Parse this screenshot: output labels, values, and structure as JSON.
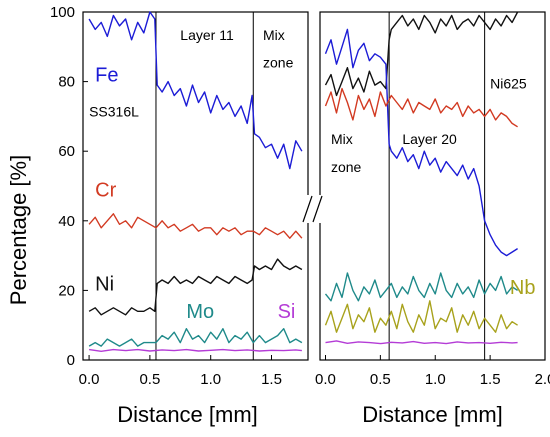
{
  "chart_data": {
    "type": "line",
    "ylabel": "Percentage [%]",
    "y_ticks": [
      "0",
      "20",
      "40",
      "60",
      "80",
      "100"
    ],
    "ylim": [
      0,
      100
    ],
    "axis_break": true,
    "panels": [
      {
        "xlabel": "Distance [mm]",
        "xlim": [
          -0.05,
          1.8
        ],
        "x_ticks": [
          "0.0",
          "0.5",
          "1.0",
          "1.5"
        ],
        "tick_values": [
          0,
          0.5,
          1.0,
          1.5
        ],
        "boundaries": [
          0.55,
          1.35
        ],
        "annotations": [
          {
            "text": "Layer 11",
            "x": 0.75,
            "y": 92
          },
          {
            "text": "Mix",
            "x": 1.43,
            "y": 92
          },
          {
            "text": "zone",
            "x": 1.43,
            "y": 84
          },
          {
            "text": "SS316L",
            "x": 0.0,
            "y": 70
          }
        ],
        "series": [
          {
            "name": "Fe",
            "color": "#1c1cd6",
            "label_pos": [
              0.05,
              80
            ],
            "x": [
              0.0,
              0.05,
              0.1,
              0.15,
              0.2,
              0.25,
              0.3,
              0.35,
              0.4,
              0.45,
              0.5,
              0.54,
              0.56,
              0.6,
              0.65,
              0.7,
              0.75,
              0.8,
              0.85,
              0.9,
              0.95,
              1.0,
              1.05,
              1.1,
              1.15,
              1.2,
              1.25,
              1.3,
              1.34,
              1.36,
              1.4,
              1.45,
              1.5,
              1.55,
              1.6,
              1.65,
              1.7,
              1.75
            ],
            "y": [
              98,
              95,
              97,
              93,
              99,
              96,
              98,
              92,
              97,
              94,
              100,
              98,
              79,
              77,
              80,
              76,
              78,
              73,
              79,
              74,
              77,
              71,
              76,
              72,
              74,
              70,
              73,
              68,
              76,
              65,
              64,
              61,
              62,
              58,
              62,
              55,
              63,
              60
            ]
          },
          {
            "name": "Cr",
            "color": "#d23a22",
            "label_pos": [
              0.05,
              47
            ],
            "x": [
              0.0,
              0.05,
              0.1,
              0.15,
              0.2,
              0.25,
              0.3,
              0.35,
              0.4,
              0.45,
              0.5,
              0.55,
              0.6,
              0.65,
              0.7,
              0.75,
              0.8,
              0.85,
              0.9,
              0.95,
              1.0,
              1.05,
              1.1,
              1.15,
              1.2,
              1.25,
              1.3,
              1.35,
              1.4,
              1.45,
              1.5,
              1.55,
              1.6,
              1.65,
              1.7,
              1.75
            ],
            "y": [
              39,
              41,
              38,
              40,
              42,
              39,
              40,
              38,
              41,
              40,
              39,
              38,
              40,
              38,
              39,
              37,
              38,
              39,
              37,
              38,
              38,
              36,
              38,
              37,
              38,
              36,
              37,
              37,
              36,
              38,
              37,
              36,
              37,
              35,
              37,
              35
            ]
          },
          {
            "name": "Ni",
            "color": "#111111",
            "label_pos": [
              0.05,
              20
            ],
            "x": [
              0.0,
              0.05,
              0.1,
              0.15,
              0.2,
              0.25,
              0.3,
              0.35,
              0.4,
              0.45,
              0.5,
              0.54,
              0.56,
              0.6,
              0.65,
              0.7,
              0.75,
              0.8,
              0.85,
              0.9,
              0.95,
              1.0,
              1.05,
              1.1,
              1.15,
              1.2,
              1.25,
              1.3,
              1.34,
              1.36,
              1.4,
              1.45,
              1.5,
              1.55,
              1.6,
              1.65,
              1.7,
              1.75
            ],
            "y": [
              14,
              15,
              13,
              14,
              15,
              14,
              13,
              15,
              14,
              14,
              15,
              14,
              22,
              23,
              22,
              24,
              22,
              23,
              22,
              24,
              23,
              22,
              24,
              23,
              22,
              24,
              23,
              22,
              23,
              27,
              26,
              27,
              26,
              29,
              27,
              26,
              27,
              26
            ]
          },
          {
            "name": "Mo",
            "color": "#1f8a8a",
            "label_pos": [
              0.8,
              12
            ],
            "x": [
              0.0,
              0.05,
              0.1,
              0.15,
              0.2,
              0.25,
              0.3,
              0.35,
              0.4,
              0.45,
              0.5,
              0.55,
              0.6,
              0.65,
              0.7,
              0.75,
              0.8,
              0.85,
              0.9,
              0.95,
              1.0,
              1.05,
              1.1,
              1.15,
              1.2,
              1.25,
              1.3,
              1.35,
              1.4,
              1.45,
              1.5,
              1.55,
              1.6,
              1.65,
              1.7,
              1.75
            ],
            "y": [
              4,
              5,
              4,
              6,
              5,
              4,
              5,
              6,
              4,
              5,
              5,
              5,
              7,
              6,
              8,
              5,
              9,
              6,
              7,
              5,
              8,
              6,
              9,
              5,
              7,
              6,
              8,
              5,
              7,
              5,
              6,
              7,
              9,
              5,
              6,
              5
            ]
          },
          {
            "name": "Si",
            "color": "#b43cd6",
            "label_pos": [
              1.55,
              12
            ],
            "x": [
              0.0,
              0.1,
              0.2,
              0.3,
              0.4,
              0.5,
              0.6,
              0.7,
              0.8,
              0.9,
              1.0,
              1.1,
              1.2,
              1.3,
              1.4,
              1.5,
              1.6,
              1.7,
              1.75
            ],
            "y": [
              3,
              2.5,
              3,
              2.7,
              3,
              2.6,
              2.9,
              2.7,
              3,
              2.6,
              2.8,
              3,
              2.7,
              2.9,
              2.6,
              2.8,
              2.7,
              2.9,
              2.7
            ]
          }
        ]
      },
      {
        "xlabel": "Distance [mm]",
        "xlim": [
          -0.05,
          2.0
        ],
        "x_ticks": [
          "0.0",
          "0.5",
          "1.0",
          "1.5",
          "2.0"
        ],
        "tick_values": [
          0,
          0.5,
          1.0,
          1.5,
          2.0
        ],
        "boundaries": [
          0.58,
          1.45
        ],
        "annotations": [
          {
            "text": "Ni625",
            "x": 1.5,
            "y": 78
          },
          {
            "text": "Mix",
            "x": 0.05,
            "y": 62
          },
          {
            "text": "zone",
            "x": 0.05,
            "y": 54
          },
          {
            "text": "Layer 20",
            "x": 0.7,
            "y": 62
          }
        ],
        "series": [
          {
            "name": "",
            "color": "#111111",
            "x": [
              0.0,
              0.05,
              0.1,
              0.15,
              0.2,
              0.25,
              0.3,
              0.35,
              0.4,
              0.45,
              0.5,
              0.55,
              0.58,
              0.6,
              0.65,
              0.7,
              0.75,
              0.8,
              0.85,
              0.9,
              0.95,
              1.0,
              1.05,
              1.1,
              1.15,
              1.2,
              1.25,
              1.3,
              1.35,
              1.4,
              1.45,
              1.5,
              1.55,
              1.6,
              1.65,
              1.7,
              1.75
            ],
            "y": [
              79,
              82,
              76,
              80,
              84,
              78,
              81,
              77,
              83,
              79,
              80,
              78,
              92,
              95,
              97,
              99,
              96,
              98,
              95,
              99,
              97,
              94,
              98,
              96,
              99,
              95,
              97,
              98,
              96,
              99,
              97,
              95,
              98,
              96,
              99,
              97,
              100
            ]
          },
          {
            "name": "",
            "color": "#1c1cd6",
            "x": [
              0.0,
              0.05,
              0.1,
              0.15,
              0.2,
              0.25,
              0.3,
              0.35,
              0.4,
              0.45,
              0.5,
              0.55,
              0.58,
              0.6,
              0.65,
              0.7,
              0.75,
              0.8,
              0.85,
              0.9,
              0.95,
              1.0,
              1.05,
              1.1,
              1.15,
              1.2,
              1.25,
              1.3,
              1.35,
              1.4,
              1.45,
              1.5,
              1.55,
              1.6,
              1.65,
              1.7,
              1.75
            ],
            "y": [
              88,
              92,
              85,
              90,
              95,
              84,
              89,
              91,
              86,
              88,
              87,
              85,
              62,
              60,
              58,
              61,
              57,
              59,
              55,
              60,
              56,
              58,
              54,
              57,
              55,
              53,
              56,
              52,
              55,
              50,
              40,
              36,
              33,
              31,
              30,
              31,
              32
            ]
          },
          {
            "name": "",
            "color": "#d23a22",
            "x": [
              0.0,
              0.05,
              0.1,
              0.15,
              0.2,
              0.25,
              0.3,
              0.35,
              0.4,
              0.45,
              0.5,
              0.55,
              0.6,
              0.65,
              0.7,
              0.75,
              0.8,
              0.85,
              0.9,
              0.95,
              1.0,
              1.05,
              1.1,
              1.15,
              1.2,
              1.25,
              1.3,
              1.35,
              1.4,
              1.45,
              1.5,
              1.55,
              1.6,
              1.65,
              1.7,
              1.75
            ],
            "y": [
              73,
              77,
              71,
              78,
              74,
              69,
              76,
              72,
              75,
              70,
              77,
              73,
              76,
              74,
              72,
              75,
              71,
              74,
              73,
              72,
              75,
              71,
              73,
              72,
              74,
              70,
              73,
              71,
              72,
              70,
              72,
              69,
              71,
              70,
              68,
              67
            ]
          },
          {
            "name": "",
            "color": "#1f8a8a",
            "x": [
              0.0,
              0.05,
              0.1,
              0.15,
              0.2,
              0.25,
              0.3,
              0.35,
              0.4,
              0.45,
              0.5,
              0.55,
              0.6,
              0.65,
              0.7,
              0.75,
              0.8,
              0.85,
              0.9,
              0.95,
              1.0,
              1.05,
              1.1,
              1.15,
              1.2,
              1.25,
              1.3,
              1.35,
              1.4,
              1.45,
              1.5,
              1.55,
              1.6,
              1.65,
              1.7,
              1.75
            ],
            "y": [
              19,
              17,
              22,
              18,
              25,
              20,
              17,
              21,
              19,
              23,
              18,
              20,
              22,
              18,
              21,
              19,
              24,
              20,
              18,
              22,
              19,
              25,
              20,
              18,
              22,
              19,
              21,
              18,
              23,
              19,
              22,
              20,
              24,
              19,
              21,
              20
            ]
          },
          {
            "name": "Nb",
            "color": "#a8a21c",
            "label_pos": [
              1.68,
              19
            ],
            "x": [
              0.0,
              0.05,
              0.1,
              0.15,
              0.2,
              0.25,
              0.3,
              0.35,
              0.4,
              0.45,
              0.5,
              0.55,
              0.6,
              0.65,
              0.7,
              0.75,
              0.8,
              0.85,
              0.9,
              0.95,
              1.0,
              1.05,
              1.1,
              1.15,
              1.2,
              1.25,
              1.3,
              1.35,
              1.4,
              1.45,
              1.5,
              1.55,
              1.6,
              1.65,
              1.7,
              1.75
            ],
            "y": [
              10,
              14,
              8,
              12,
              16,
              9,
              13,
              11,
              15,
              8,
              12,
              10,
              14,
              9,
              16,
              11,
              8,
              13,
              10,
              17,
              9,
              12,
              11,
              15,
              8,
              13,
              10,
              14,
              9,
              12,
              10,
              8,
              13,
              9,
              11,
              10
            ]
          },
          {
            "name": "",
            "color": "#b43cd6",
            "x": [
              0.0,
              0.1,
              0.2,
              0.3,
              0.4,
              0.5,
              0.6,
              0.7,
              0.8,
              0.9,
              1.0,
              1.1,
              1.2,
              1.3,
              1.4,
              1.5,
              1.6,
              1.7,
              1.75
            ],
            "y": [
              5,
              5.5,
              4.8,
              5.2,
              5,
              4.7,
              5.1,
              4.9,
              5.3,
              4.8,
              5,
              4.7,
              5.2,
              4.9,
              5,
              4.8,
              5.1,
              4.9,
              5
            ]
          }
        ]
      }
    ]
  }
}
